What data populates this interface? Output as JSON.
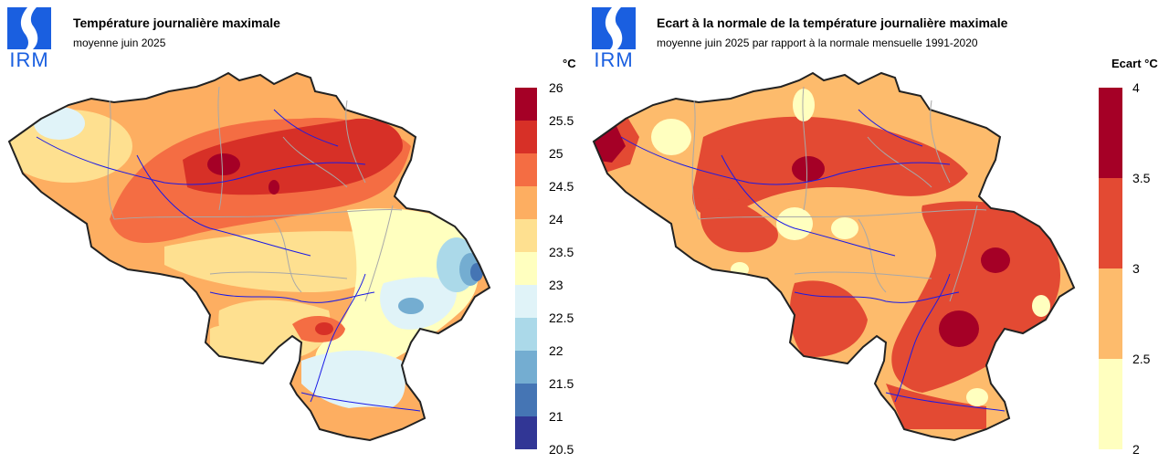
{
  "left_map": {
    "logo_text": "IRM",
    "title": "Température journalière maximale",
    "subtitle": "moyenne juin 2025",
    "unit": "°C",
    "legend": {
      "ticks": [
        "26",
        "25.5",
        "25",
        "24.5",
        "24",
        "23.5",
        "23",
        "22.5",
        "22",
        "21.5",
        "21",
        "20.5"
      ],
      "colors": [
        "#a50026",
        "#d73027",
        "#f46d43",
        "#fdae61",
        "#fee090",
        "#ffffbf",
        "#e0f3f8",
        "#abd9e9",
        "#74add1",
        "#4575b4",
        "#313695"
      ]
    }
  },
  "right_map": {
    "logo_text": "IRM",
    "title": "Ecart à la normale de la température journalière maximale",
    "subtitle": "moyenne juin 2025 par rapport à la normale mensuelle 1991-2020",
    "unit": "Ecart °C",
    "legend": {
      "ticks": [
        "4",
        "3.5",
        "3",
        "2.5",
        "2"
      ],
      "colors": [
        "#a50026",
        "#e34a33",
        "#fdbb6c",
        "#ffffbf"
      ]
    }
  }
}
